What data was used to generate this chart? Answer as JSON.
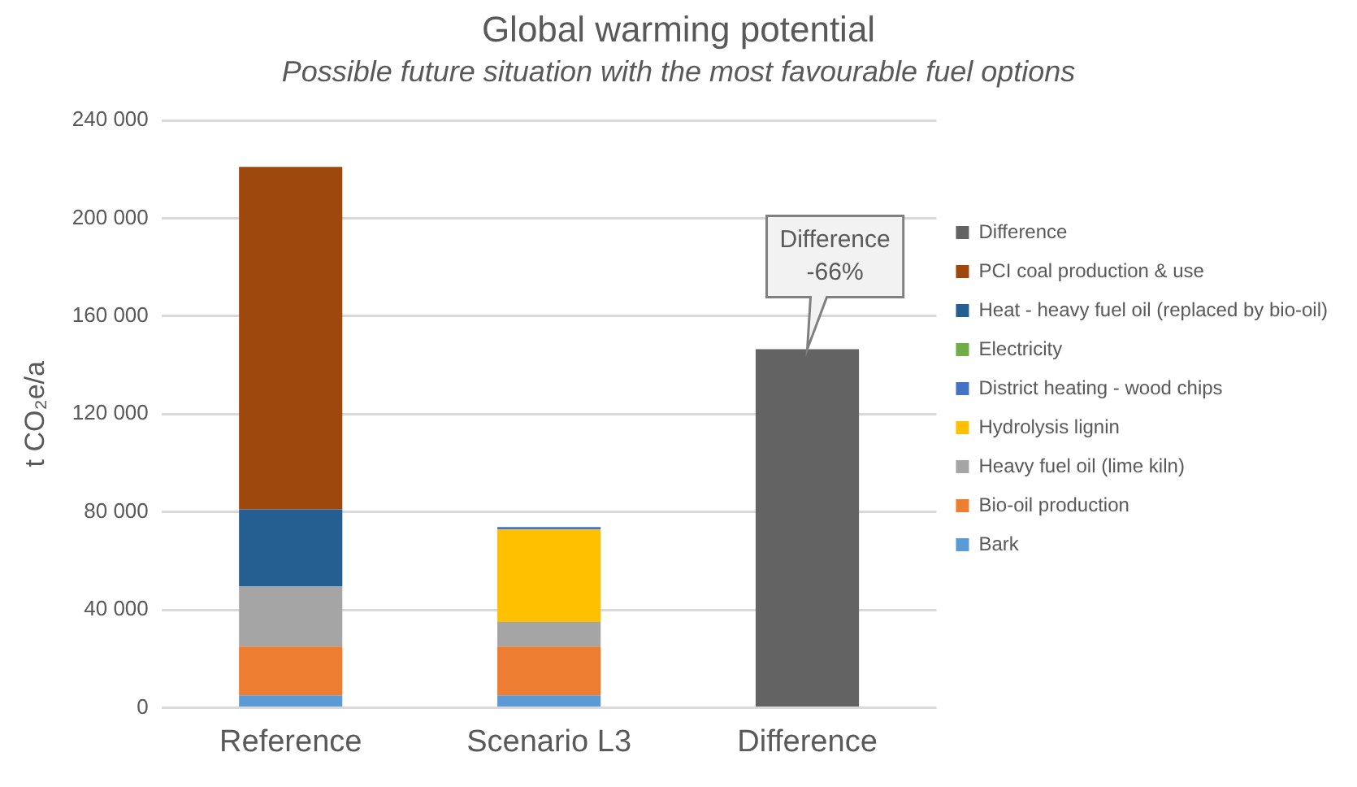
{
  "chart_data": {
    "type": "bar",
    "title": "Global warming potential",
    "subtitle": "Possible future situation with the most favourable fuel options",
    "ylabel": "t CO₂e/a",
    "categories": [
      "Reference",
      "Scenario L3",
      "Difference"
    ],
    "stacked": true,
    "series": [
      {
        "name": "Bark",
        "color": "#5b9bd5",
        "values": [
          5000,
          5000,
          null
        ]
      },
      {
        "name": "Bio-oil production",
        "color": "#ed7d31",
        "values": [
          20000,
          20000,
          null
        ]
      },
      {
        "name": "Heavy fuel oil (lime kiln)",
        "color": "#a5a5a5",
        "values": [
          24500,
          10000,
          null
        ]
      },
      {
        "name": "Hydrolysis lignin",
        "color": "#ffc000",
        "values": [
          null,
          37800,
          null
        ]
      },
      {
        "name": "District heating - wood chips",
        "color": "#4472c4",
        "values": [
          null,
          1000,
          null
        ]
      },
      {
        "name": "Electricity",
        "color": "#70ad47",
        "values": [
          null,
          null,
          null
        ]
      },
      {
        "name": "Heat - heavy fuel oil (replaced by bio-oil)",
        "color": "#255e91",
        "values": [
          31500,
          null,
          null
        ]
      },
      {
        "name": "PCI coal production & use",
        "color": "#9e480e",
        "values": [
          140000,
          null,
          null
        ]
      },
      {
        "name": "Difference",
        "color": "#636363",
        "values": [
          null,
          null,
          146500
        ]
      }
    ],
    "ylim": [
      0,
      240000
    ],
    "yticks": [
      {
        "value": 0,
        "label": "0"
      },
      {
        "value": 40000,
        "label": "40 000"
      },
      {
        "value": 80000,
        "label": "80 000"
      },
      {
        "value": 120000,
        "label": "120 000"
      },
      {
        "value": 160000,
        "label": "160 000"
      },
      {
        "value": 200000,
        "label": "200 000"
      },
      {
        "value": 240000,
        "label": "240 000"
      }
    ],
    "grid": "y",
    "legend": "right",
    "annotations": [
      {
        "text": "Difference\n-66%",
        "x": "Difference",
        "y": 146500
      }
    ]
  }
}
